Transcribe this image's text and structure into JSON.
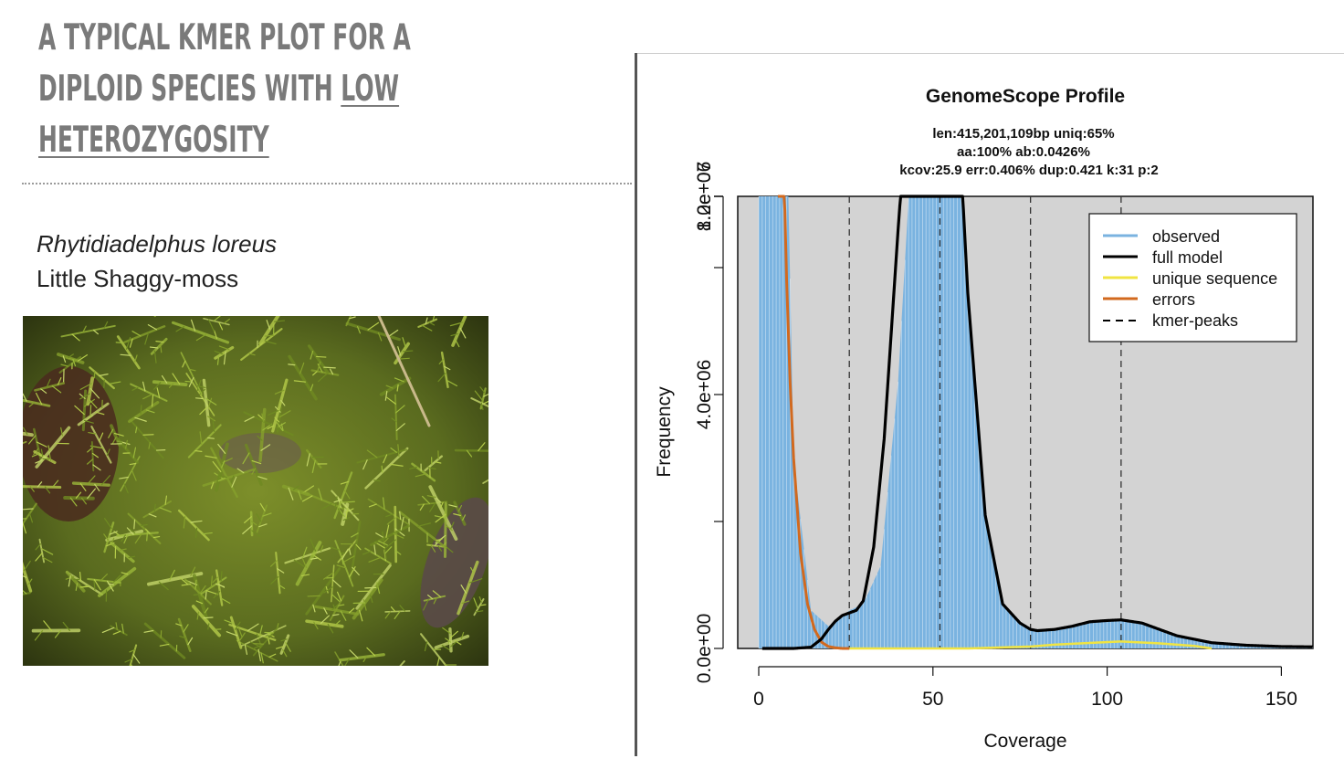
{
  "slide": {
    "title_line1": "A TYPICAL KMER PLOT FOR A",
    "title_line2_pre": "DIPLOID SPECIES WITH ",
    "title_line2_u": "LOW",
    "title_line3_u": "HETEROZYGOSITY",
    "species_latin": "Rhytidiadelphus loreus",
    "species_common": "Little Shaggy-moss"
  },
  "colors": {
    "title": "#7a7a7a",
    "plot_bg": "#d3d3d3",
    "observed": "#7ab3e0",
    "full_model": "#000000",
    "unique_sequence": "#f0e442",
    "errors": "#d2691e"
  },
  "chart_data": {
    "type": "area",
    "title": "GenomeScope Profile",
    "subtitle_lines": [
      "len:415,201,109bp uniq:65%",
      "aa:100% ab:0.0426%",
      "kcov:25.9 err:0.406%  dup:0.421  k:31 p:2"
    ],
    "xlabel": "Coverage",
    "ylabel": "Frequency",
    "xlim": [
      0,
      159
    ],
    "ylim": [
      0,
      14300000
    ],
    "x_ticks": [
      0,
      50,
      100,
      150
    ],
    "y_ticks": [
      0,
      4000000,
      8000000,
      12000000
    ],
    "y_tick_labels": [
      "0.0e+00",
      "4.0e+06",
      "8.0e+06",
      "1.2e+07"
    ],
    "y_minor_ticks": [
      2000000,
      6000000,
      10000000,
      14000000
    ],
    "kmer_peaks": [
      26,
      52,
      78,
      104
    ],
    "legend_position": "top-right",
    "legend": [
      "observed",
      "full model",
      "unique sequence",
      "errors",
      "kmer-peaks"
    ],
    "series": [
      {
        "name": "observed",
        "x": [
          0,
          1,
          2,
          3,
          4,
          5,
          6,
          10,
          15,
          20,
          24,
          26,
          30,
          35,
          40,
          45,
          48,
          50,
          51,
          52,
          54,
          56,
          60,
          65,
          70,
          75,
          78,
          80,
          85,
          90,
          95,
          100,
          104,
          110,
          120,
          130,
          140,
          150,
          159
        ],
        "y": [
          14300000,
          14300000,
          14300000,
          14300000,
          14300000,
          14300000,
          14300000,
          3000000,
          600000,
          350000,
          500000,
          600000,
          700000,
          1300000,
          4200000,
          9000000,
          11400000,
          12200000,
          12400000,
          12300000,
          11200000,
          9500000,
          5400000,
          2000000,
          700000,
          400000,
          300000,
          280000,
          300000,
          350000,
          420000,
          440000,
          450000,
          400000,
          200000,
          90000,
          50000,
          30000,
          25000
        ]
      },
      {
        "name": "full model",
        "x": [
          1,
          5,
          10,
          15,
          18,
          20,
          22,
          24,
          26,
          28,
          30,
          33,
          36,
          40,
          45,
          48,
          50,
          51,
          52,
          54,
          56,
          60,
          65,
          70,
          75,
          78,
          80,
          85,
          90,
          95,
          100,
          104,
          110,
          115,
          120,
          130,
          140,
          150,
          159
        ],
        "y": [
          0,
          0,
          0,
          20000,
          150000,
          300000,
          430000,
          520000,
          560000,
          600000,
          750000,
          1600000,
          3300000,
          6600000,
          10400000,
          12000000,
          12350000,
          12450000,
          12350000,
          11500000,
          9800000,
          5600000,
          2100000,
          700000,
          400000,
          300000,
          280000,
          300000,
          350000,
          420000,
          440000,
          450000,
          400000,
          300000,
          200000,
          90000,
          50000,
          30000,
          25000
        ]
      },
      {
        "name": "unique sequence",
        "x": [
          26,
          40,
          60,
          78,
          85,
          100,
          104,
          115,
          125,
          130
        ],
        "y": [
          0,
          0,
          0,
          30000,
          60000,
          100000,
          110000,
          80000,
          40000,
          0
        ]
      },
      {
        "name": "errors",
        "x": [
          5.5,
          6,
          7,
          8,
          9,
          10,
          12,
          14,
          16,
          18,
          20,
          22,
          24,
          26
        ],
        "y": [
          14300000,
          11000000,
          8000000,
          5800000,
          4200000,
          3000000,
          1500000,
          700000,
          300000,
          100000,
          30000,
          10000,
          0,
          0
        ]
      }
    ]
  }
}
